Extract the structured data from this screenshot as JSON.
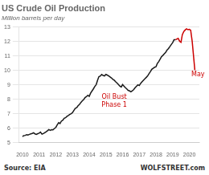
{
  "chart_data": {
    "type": "line",
    "title": "US Crude Oil Production",
    "subtitle": "Million barrels per day",
    "source": "Source: EIA",
    "credit": "WOLFSTREET.com",
    "xlim": [
      2009.8,
      2020.6
    ],
    "xticks": [
      2010,
      2011,
      2012,
      2013,
      2014,
      2015,
      2016,
      2017,
      2018,
      2019,
      2020
    ],
    "ylim": [
      5,
      13
    ],
    "yticks": [
      5,
      6,
      7,
      8,
      9,
      10,
      11,
      12,
      13
    ],
    "grid": "y",
    "annotations": [
      {
        "text": "Oil Bust\nPhase 1",
        "x": 2015.5,
        "y": 8.4,
        "color": "#cc0000"
      },
      {
        "text": "May",
        "x": 2020.12,
        "y": 9.95,
        "color": "#cc0000"
      }
    ],
    "x": [
      2010.0,
      2010.08,
      2010.17,
      2010.25,
      2010.33,
      2010.42,
      2010.5,
      2010.58,
      2010.67,
      2010.75,
      2010.83,
      2010.92,
      2011.0,
      2011.08,
      2011.17,
      2011.25,
      2011.33,
      2011.42,
      2011.5,
      2011.58,
      2011.67,
      2011.75,
      2011.83,
      2011.92,
      2012.0,
      2012.08,
      2012.17,
      2012.25,
      2012.33,
      2012.42,
      2012.5,
      2012.58,
      2012.67,
      2012.75,
      2012.83,
      2012.92,
      2013.0,
      2013.08,
      2013.17,
      2013.25,
      2013.33,
      2013.42,
      2013.5,
      2013.58,
      2013.67,
      2013.75,
      2013.83,
      2013.92,
      2014.0,
      2014.08,
      2014.17,
      2014.25,
      2014.33,
      2014.42,
      2014.5,
      2014.58,
      2014.67,
      2014.75,
      2014.83,
      2014.92,
      2015.0,
      2015.08,
      2015.17,
      2015.25,
      2015.33,
      2015.42,
      2015.5,
      2015.58,
      2015.67,
      2015.75,
      2015.83,
      2015.92,
      2016.0,
      2016.08,
      2016.17,
      2016.25,
      2016.33,
      2016.42,
      2016.5,
      2016.58,
      2016.67,
      2016.75,
      2016.83,
      2016.92,
      2017.0,
      2017.08,
      2017.17,
      2017.25,
      2017.33,
      2017.42,
      2017.5,
      2017.58,
      2017.67,
      2017.75,
      2017.83,
      2017.92,
      2018.0,
      2018.08,
      2018.17,
      2018.25,
      2018.33,
      2018.42,
      2018.5,
      2018.58,
      2018.67,
      2018.75,
      2018.83,
      2018.92,
      2019.0,
      2019.08,
      2019.17,
      2019.25,
      2019.33,
      2019.42,
      2019.5,
      2019.58,
      2019.67,
      2019.75,
      2019.83,
      2019.92,
      2020.0,
      2020.08,
      2020.17,
      2020.33
    ],
    "series": [
      {
        "color": "#1a1a1a",
        "values": [
          5.42,
          5.48,
          5.5,
          5.55,
          5.52,
          5.57,
          5.6,
          5.63,
          5.68,
          5.6,
          5.57,
          5.62,
          5.65,
          5.72,
          5.58,
          5.62,
          5.68,
          5.75,
          5.82,
          5.9,
          5.85,
          5.9,
          5.88,
          5.98,
          6.05,
          6.22,
          6.38,
          6.32,
          6.48,
          6.55,
          6.68,
          6.72,
          6.82,
          6.88,
          6.95,
          7.0,
          7.08,
          7.22,
          7.38,
          7.42,
          7.55,
          7.65,
          7.78,
          7.88,
          7.98,
          8.12,
          8.18,
          8.28,
          8.2,
          8.42,
          8.58,
          8.72,
          8.88,
          9.02,
          9.32,
          9.57,
          9.62,
          9.72,
          9.65,
          9.62,
          9.72,
          9.68,
          9.62,
          9.55,
          9.48,
          9.38,
          9.32,
          9.22,
          9.12,
          9.02,
          8.92,
          8.85,
          9.02,
          8.92,
          8.8,
          8.72,
          8.62,
          8.58,
          8.52,
          8.58,
          8.68,
          8.8,
          8.9,
          9.0,
          8.95,
          9.1,
          9.22,
          9.32,
          9.42,
          9.52,
          9.62,
          9.77,
          9.92,
          10.08,
          10.15,
          10.22,
          10.25,
          10.48,
          10.62,
          10.78,
          10.95,
          11.05,
          11.15,
          11.25,
          11.42,
          11.52,
          11.65,
          11.8,
          11.92,
          12.12,
          12.12,
          null,
          null,
          null,
          null,
          null,
          null,
          null,
          null,
          null,
          null,
          null,
          null,
          null
        ]
      },
      {
        "color": "#cc0000",
        "values": [
          null,
          null,
          null,
          null,
          null,
          null,
          null,
          null,
          null,
          null,
          null,
          null,
          null,
          null,
          null,
          null,
          null,
          null,
          null,
          null,
          null,
          null,
          null,
          null,
          null,
          null,
          null,
          null,
          null,
          null,
          null,
          null,
          null,
          null,
          null,
          null,
          null,
          null,
          null,
          null,
          null,
          null,
          null,
          null,
          null,
          null,
          null,
          null,
          null,
          null,
          null,
          null,
          null,
          null,
          null,
          null,
          null,
          null,
          null,
          null,
          null,
          null,
          null,
          null,
          null,
          null,
          null,
          null,
          null,
          null,
          null,
          null,
          null,
          null,
          null,
          null,
          null,
          null,
          null,
          null,
          null,
          null,
          null,
          null,
          null,
          null,
          null,
          null,
          null,
          null,
          null,
          null,
          null,
          null,
          null,
          null,
          null,
          null,
          null,
          null,
          null,
          null,
          null,
          null,
          null,
          null,
          null,
          null,
          null,
          null,
          12.12,
          12.18,
          12.22,
          12.02,
          11.95,
          12.48,
          12.7,
          12.8,
          12.88,
          12.82,
          12.85,
          12.78,
          12.02,
          10.02
        ]
      }
    ]
  }
}
